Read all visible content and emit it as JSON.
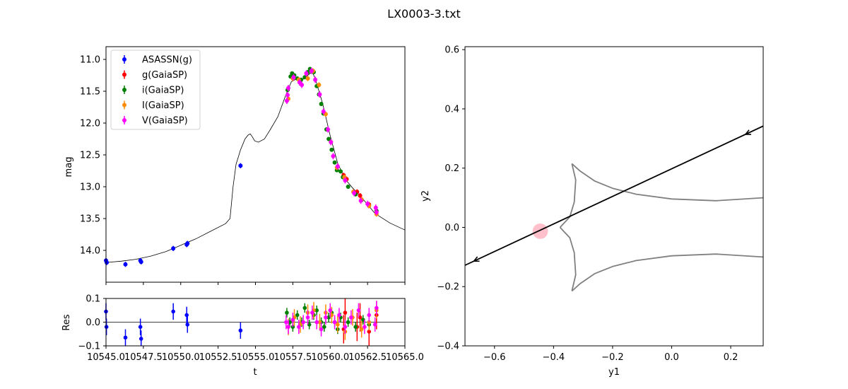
{
  "figure": {
    "title": "LX0003-3.txt"
  },
  "chart_data": [
    {
      "id": "lightcurve",
      "type": "scatter",
      "xlabel": "",
      "ylabel": "mag",
      "xlim": [
        10545.0,
        10565.0
      ],
      "ylim": [
        14.5,
        10.8
      ],
      "y_inverted": true,
      "yticks": [
        11.0,
        11.5,
        12.0,
        12.5,
        13.0,
        13.5,
        14.0
      ],
      "ytick_labels": [
        "11.0",
        "11.5",
        "12.0",
        "12.5",
        "13.0",
        "13.5",
        "14.0"
      ],
      "legend_position": "top-left",
      "series": [
        {
          "name": "ASASSN(g)",
          "color": "#0000ff",
          "points": [
            [
              10545.0,
              14.16
            ],
            [
              10545.05,
              14.19
            ],
            [
              10546.3,
              14.22
            ],
            [
              10547.3,
              14.16
            ],
            [
              10547.35,
              14.18
            ],
            [
              10549.5,
              13.97
            ],
            [
              10550.4,
              13.91
            ],
            [
              10550.45,
              13.89
            ],
            [
              10554.0,
              12.67
            ]
          ],
          "yerr": 0.04
        },
        {
          "name": "g(GaiaSP)",
          "color": "#ff0000",
          "points": [
            [
              10560.9,
              12.82
            ],
            [
              10561.1,
              12.88
            ],
            [
              10561.8,
              13.08
            ],
            [
              10562.0,
              13.14
            ],
            [
              10562.6,
              13.28
            ]
          ],
          "yerr": 0.04
        },
        {
          "name": "i(GaiaSP)",
          "color": "#008000",
          "points": [
            [
              10557.15,
              11.48
            ],
            [
              10557.35,
              11.27
            ],
            [
              10557.45,
              11.22
            ],
            [
              10557.6,
              11.25
            ],
            [
              10557.8,
              11.3
            ],
            [
              10558.05,
              11.32
            ],
            [
              10558.3,
              11.28
            ],
            [
              10558.5,
              11.2
            ],
            [
              10558.65,
              11.15
            ],
            [
              10558.9,
              11.2
            ],
            [
              10559.1,
              11.42
            ],
            [
              10559.25,
              11.55
            ],
            [
              10559.4,
              11.7
            ],
            [
              10559.55,
              11.85
            ],
            [
              10559.75,
              12.1
            ],
            [
              10559.9,
              12.25
            ],
            [
              10560.1,
              12.42
            ],
            [
              10560.3,
              12.62
            ],
            [
              10560.45,
              12.74
            ],
            [
              10560.7,
              12.76
            ],
            [
              10560.85,
              12.85
            ],
            [
              10561.2,
              13.0
            ],
            [
              10561.7,
              13.12
            ],
            [
              10562.1,
              13.21
            ],
            [
              10562.6,
              13.3
            ],
            [
              10563.1,
              13.38
            ]
          ],
          "yerr": 0.03
        },
        {
          "name": "I(GaiaSP)",
          "color": "#ff8c00",
          "points": [
            [
              10557.2,
              11.62
            ],
            [
              10557.5,
              11.3
            ],
            [
              10557.9,
              11.32
            ],
            [
              10558.5,
              11.3
            ],
            [
              10558.85,
              11.18
            ],
            [
              10559.25,
              11.4
            ],
            [
              10559.7,
              11.86
            ],
            [
              10560.05,
              12.3
            ],
            [
              10560.45,
              12.7
            ],
            [
              10560.95,
              12.85
            ],
            [
              10561.55,
              13.08
            ],
            [
              10562.1,
              13.2
            ],
            [
              10562.6,
              13.3
            ],
            [
              10563.1,
              13.43
            ]
          ],
          "yerr": 0.04
        },
        {
          "name": "V(GaiaSP)",
          "color": "#ff00ff",
          "points": [
            [
              10557.1,
              11.65
            ],
            [
              10557.15,
              11.56
            ],
            [
              10557.2,
              11.45
            ],
            [
              10557.55,
              11.28
            ],
            [
              10557.95,
              11.36
            ],
            [
              10558.1,
              11.4
            ],
            [
              10558.4,
              11.22
            ],
            [
              10558.75,
              11.18
            ],
            [
              10559.0,
              11.32
            ],
            [
              10559.3,
              11.55
            ],
            [
              10559.55,
              11.82
            ],
            [
              10559.85,
              12.1
            ],
            [
              10560.05,
              12.3
            ],
            [
              10560.2,
              12.52
            ],
            [
              10560.5,
              12.68
            ],
            [
              10561.0,
              12.9
            ],
            [
              10561.6,
              13.1
            ],
            [
              10562.05,
              13.22
            ],
            [
              10562.5,
              13.27
            ],
            [
              10563.05,
              13.33
            ],
            [
              10563.1,
              13.4
            ]
          ],
          "yerr": 0.05
        }
      ],
      "model": [
        [
          10545.0,
          14.19
        ],
        [
          10546.0,
          14.17
        ],
        [
          10547.0,
          14.14
        ],
        [
          10548.0,
          14.09
        ],
        [
          10549.0,
          14.02
        ],
        [
          10550.0,
          13.92
        ],
        [
          10551.0,
          13.82
        ],
        [
          10552.0,
          13.7
        ],
        [
          10553.0,
          13.58
        ],
        [
          10553.3,
          13.5
        ],
        [
          10553.5,
          13.0
        ],
        [
          10553.7,
          12.65
        ],
        [
          10554.0,
          12.42
        ],
        [
          10554.3,
          12.25
        ],
        [
          10554.5,
          12.19
        ],
        [
          10554.65,
          12.17
        ],
        [
          10554.8,
          12.22
        ],
        [
          10554.95,
          12.28
        ],
        [
          10555.2,
          12.3
        ],
        [
          10555.6,
          12.25
        ],
        [
          10556.0,
          12.1
        ],
        [
          10556.5,
          11.9
        ],
        [
          10557.0,
          11.58
        ],
        [
          10557.4,
          11.35
        ],
        [
          10557.8,
          11.3
        ],
        [
          10558.2,
          11.31
        ],
        [
          10558.6,
          11.23
        ],
        [
          10558.8,
          11.2
        ],
        [
          10559.0,
          11.3
        ],
        [
          10559.5,
          11.7
        ],
        [
          10560.0,
          12.2
        ],
        [
          10560.5,
          12.63
        ],
        [
          10561.0,
          12.88
        ],
        [
          10561.5,
          13.02
        ],
        [
          10562.0,
          13.14
        ],
        [
          10562.5,
          13.28
        ],
        [
          10563.0,
          13.42
        ],
        [
          10564.0,
          13.57
        ],
        [
          10565.0,
          13.68
        ]
      ]
    },
    {
      "id": "residuals",
      "type": "scatter",
      "xlabel": "t",
      "ylabel": "Res",
      "xlim": [
        10545.0,
        10565.0
      ],
      "ylim": [
        -0.1,
        0.1
      ],
      "xticks": [
        10545.0,
        10547.5,
        10550.0,
        10552.5,
        10555.0,
        10557.5,
        10560.0,
        10562.5,
        10565.0
      ],
      "xtick_labels": [
        "10545.0",
        "10547.5",
        "10550.0",
        "10552.5",
        "10555.0",
        "10557.5",
        "10560.0",
        "10562.5",
        "10565.0"
      ],
      "yticks": [
        -0.1,
        0.0,
        0.1
      ],
      "ytick_labels": [
        "−0.1",
        "0.0",
        "0.1"
      ],
      "zero_line": 0.0,
      "series": [
        {
          "name": "ASASSN(g)",
          "color": "#0000ff",
          "points": [
            [
              10545.0,
              0.045
            ],
            [
              10545.03,
              -0.02
            ],
            [
              10546.3,
              -0.065
            ],
            [
              10547.3,
              -0.02
            ],
            [
              10547.35,
              -0.07
            ],
            [
              10549.5,
              0.045
            ],
            [
              10550.4,
              0.03
            ],
            [
              10550.45,
              -0.01
            ],
            [
              10554.0,
              -0.035
            ]
          ],
          "yerr": 0.035
        },
        {
          "name": "g(GaiaSP)",
          "color": "#ff0000",
          "points": [
            [
              10560.9,
              -0.03
            ],
            [
              10561.0,
              0.04
            ],
            [
              10561.8,
              -0.02
            ],
            [
              10562.0,
              0.02
            ],
            [
              10562.6,
              -0.04
            ],
            [
              10563.1,
              0.03
            ]
          ],
          "yerr": 0.06
        },
        {
          "name": "i(GaiaSP)",
          "color": "#008000",
          "points": [
            [
              10557.1,
              0.04
            ],
            [
              10557.3,
              0.0
            ],
            [
              10557.5,
              -0.02
            ],
            [
              10557.8,
              0.03
            ],
            [
              10558.1,
              0.0
            ],
            [
              10558.3,
              0.06
            ],
            [
              10558.6,
              -0.01
            ],
            [
              10558.9,
              0.03
            ],
            [
              10559.1,
              0.05
            ],
            [
              10559.4,
              0.0
            ],
            [
              10559.6,
              -0.02
            ],
            [
              10559.9,
              0.02
            ],
            [
              10560.1,
              0.04
            ],
            [
              10560.3,
              0.0
            ],
            [
              10560.5,
              -0.03
            ],
            [
              10560.7,
              0.02
            ],
            [
              10561.2,
              0.0
            ],
            [
              10561.7,
              -0.02
            ],
            [
              10562.2,
              0.01
            ],
            [
              10562.6,
              -0.01
            ]
          ],
          "yerr": 0.02
        },
        {
          "name": "I(GaiaSP)",
          "color": "#ff8c00",
          "points": [
            [
              10557.2,
              -0.02
            ],
            [
              10557.6,
              0.02
            ],
            [
              10558.0,
              -0.01
            ],
            [
              10558.5,
              0.04
            ],
            [
              10558.9,
              0.05
            ],
            [
              10559.3,
              0.0
            ],
            [
              10559.7,
              0.04
            ],
            [
              10560.1,
              0.03
            ],
            [
              10560.5,
              -0.01
            ],
            [
              10561.0,
              -0.04
            ],
            [
              10561.5,
              0.02
            ],
            [
              10562.1,
              -0.03
            ],
            [
              10562.6,
              0.0
            ],
            [
              10563.1,
              0.05
            ]
          ],
          "yerr": 0.035
        },
        {
          "name": "V(GaiaSP)",
          "color": "#ff00ff",
          "points": [
            [
              10557.05,
              0.0
            ],
            [
              10557.2,
              -0.02
            ],
            [
              10557.5,
              0.01
            ],
            [
              10557.9,
              -0.02
            ],
            [
              10558.2,
              0.0
            ],
            [
              10558.5,
              0.02
            ],
            [
              10558.8,
              0.04
            ],
            [
              10559.1,
              0.0
            ],
            [
              10559.4,
              -0.03
            ],
            [
              10559.7,
              0.02
            ],
            [
              10560.0,
              0.05
            ],
            [
              10560.3,
              0.0
            ],
            [
              10560.6,
              0.03
            ],
            [
              10561.0,
              -0.02
            ],
            [
              10561.4,
              0.02
            ],
            [
              10561.9,
              0.05
            ],
            [
              10562.3,
              -0.02
            ],
            [
              10562.6,
              0.03
            ],
            [
              10563.0,
              -0.01
            ],
            [
              10563.1,
              0.06
            ]
          ],
          "yerr": 0.03
        }
      ]
    },
    {
      "id": "source-plane",
      "type": "line",
      "xlabel": "y1",
      "ylabel": "y2",
      "xlim": [
        -0.7,
        0.31
      ],
      "ylim": [
        -0.4,
        0.61
      ],
      "xticks": [
        -0.6,
        -0.4,
        -0.2,
        0.0,
        0.2
      ],
      "xtick_labels": [
        "−0.6",
        "−0.4",
        "−0.2",
        "0.0",
        "0.2"
      ],
      "yticks": [
        -0.4,
        -0.2,
        0.0,
        0.2,
        0.4,
        0.6
      ],
      "ytick_labels": [
        "−0.4",
        "−0.2",
        "0.0",
        "0.2",
        "0.4",
        "0.6"
      ],
      "caustic_color": "#808080",
      "caustic_upper": [
        [
          -0.338,
          0.215
        ],
        [
          -0.31,
          0.19
        ],
        [
          -0.26,
          0.156
        ],
        [
          -0.2,
          0.132
        ],
        [
          -0.12,
          0.112
        ],
        [
          0.0,
          0.096
        ],
        [
          0.15,
          0.09
        ],
        [
          0.31,
          0.1
        ]
      ],
      "caustic_upper_inner": [
        [
          -0.338,
          0.215
        ],
        [
          -0.325,
          0.16
        ],
        [
          -0.33,
          0.085
        ],
        [
          -0.345,
          0.035
        ],
        [
          -0.378,
          0.0
        ]
      ],
      "caustic_lower": [
        [
          -0.338,
          -0.215
        ],
        [
          -0.31,
          -0.19
        ],
        [
          -0.26,
          -0.156
        ],
        [
          -0.2,
          -0.132
        ],
        [
          -0.12,
          -0.112
        ],
        [
          0.0,
          -0.096
        ],
        [
          0.15,
          -0.09
        ],
        [
          0.31,
          -0.1
        ]
      ],
      "caustic_lower_inner": [
        [
          -0.338,
          -0.215
        ],
        [
          -0.325,
          -0.16
        ],
        [
          -0.33,
          -0.085
        ],
        [
          -0.345,
          -0.035
        ],
        [
          -0.378,
          0.0
        ]
      ],
      "trajectory": {
        "color": "#000000",
        "start": [
          -0.7,
          -0.128
        ],
        "end": [
          0.31,
          0.342
        ],
        "arrows": [
          [
            0.25,
            0.314
          ],
          [
            -0.67,
            -0.114
          ]
        ]
      },
      "source": {
        "center": [
          -0.445,
          -0.013
        ],
        "radius": 0.026,
        "color": "#ffc0cb"
      }
    }
  ]
}
